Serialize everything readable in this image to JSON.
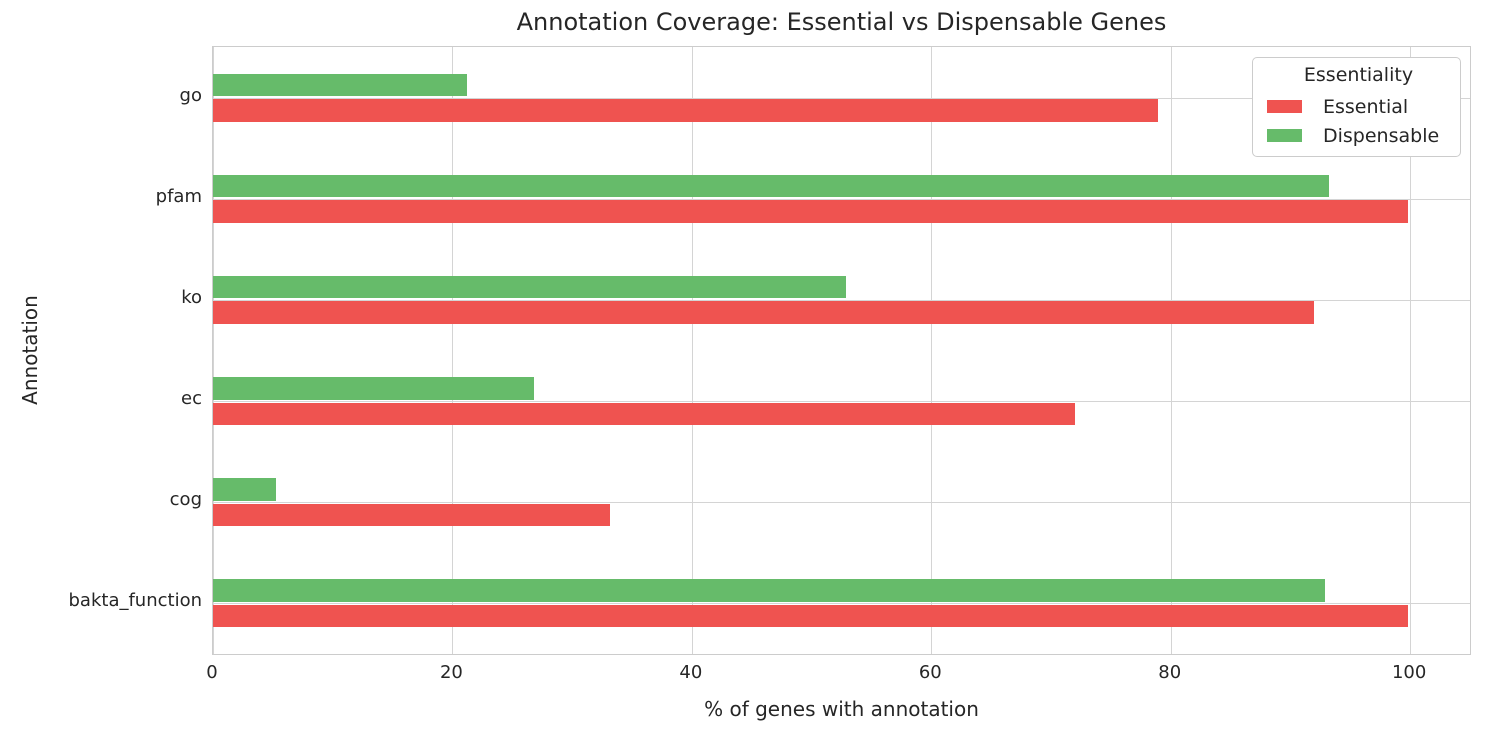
{
  "chart_data": {
    "type": "bar",
    "orientation": "horizontal",
    "title": "Annotation Coverage: Essential vs Dispensable Genes",
    "xlabel": "% of genes with annotation",
    "ylabel": "Annotation",
    "categories": [
      "go",
      "pfam",
      "ko",
      "ec",
      "cog",
      "bakta_function"
    ],
    "series": [
      {
        "name": "Essential",
        "color": "#EF5350",
        "values": [
          78.9,
          99.8,
          92.0,
          72.0,
          33.2,
          99.8
        ]
      },
      {
        "name": "Dispensable",
        "color": "#66BB6A",
        "values": [
          21.2,
          93.2,
          52.9,
          26.8,
          5.3,
          92.9
        ]
      }
    ],
    "group_order_top_to_bottom": [
      "Dispensable",
      "Essential"
    ],
    "xlim": [
      0,
      105
    ],
    "xticks": [
      "0",
      "20",
      "40",
      "60",
      "80",
      "100"
    ],
    "grid": "on",
    "legend": {
      "title": "Essentiality",
      "position": "upper right"
    },
    "colors": {
      "grid": "#d4d4d4",
      "spine": "#cccccc",
      "text": "#262626",
      "background": "#ffffff"
    }
  }
}
